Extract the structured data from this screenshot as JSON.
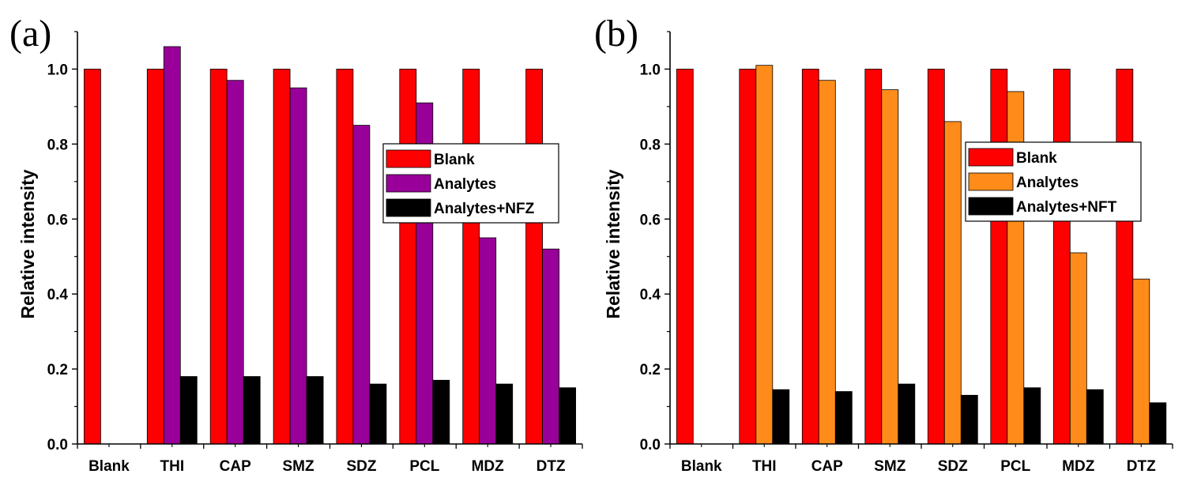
{
  "chart_data": [
    {
      "type": "bar",
      "panel_label": "(a)",
      "categories": [
        "Blank",
        "THI",
        "CAP",
        "SMZ",
        "SDZ",
        "PCL",
        "MDZ",
        "DTZ"
      ],
      "ylabel": "Relative intensity",
      "xlabel": "",
      "ylim": [
        0,
        1.1
      ],
      "yticks": [
        "0.0",
        "0.2",
        "0.4",
        "0.6",
        "0.8",
        "1.0"
      ],
      "legend_position": "right",
      "series": [
        {
          "name": "Blank",
          "color": "#ff0000",
          "values": [
            1.0,
            1.0,
            1.0,
            1.0,
            1.0,
            1.0,
            1.0,
            1.0
          ]
        },
        {
          "name": "Analytes",
          "color": "#990099",
          "values": [
            0,
            1.06,
            0.97,
            0.95,
            0.85,
            0.91,
            0.55,
            0.52
          ]
        },
        {
          "name": "Analytes+NFZ",
          "color": "#000000",
          "values": [
            0,
            0.18,
            0.18,
            0.18,
            0.16,
            0.17,
            0.16,
            0.15
          ]
        }
      ]
    },
    {
      "type": "bar",
      "panel_label": "(b)",
      "categories": [
        "Blank",
        "THI",
        "CAP",
        "SMZ",
        "SDZ",
        "PCL",
        "MDZ",
        "DTZ"
      ],
      "ylabel": "Relative intensity",
      "xlabel": "",
      "ylim": [
        0,
        1.1
      ],
      "yticks": [
        "0.0",
        "0.2",
        "0.4",
        "0.6",
        "0.8",
        "1.0"
      ],
      "legend_position": "right",
      "series": [
        {
          "name": "Blank",
          "color": "#ff0000",
          "values": [
            1.0,
            1.0,
            1.0,
            1.0,
            1.0,
            1.0,
            1.0,
            1.0
          ]
        },
        {
          "name": "Analytes",
          "color": "#ff8c1a",
          "values": [
            0,
            1.01,
            0.97,
            0.945,
            0.86,
            0.94,
            0.51,
            0.44
          ]
        },
        {
          "name": "Analytes+NFT",
          "color": "#000000",
          "values": [
            0,
            0.145,
            0.14,
            0.16,
            0.13,
            0.15,
            0.145,
            0.11
          ]
        }
      ]
    }
  ]
}
